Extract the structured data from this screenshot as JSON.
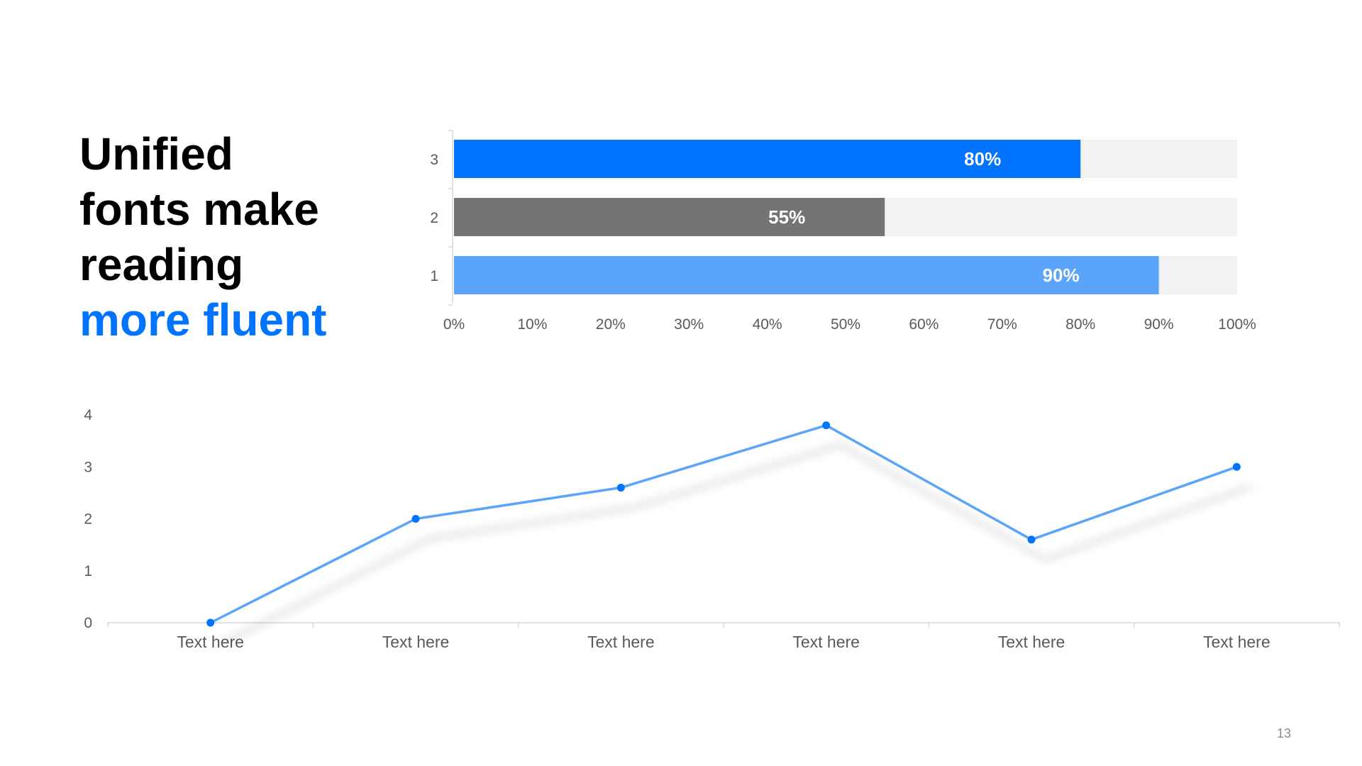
{
  "slide": {
    "title_lines": [
      "Unified",
      "fonts make",
      "reading"
    ],
    "title_accent": "more fluent",
    "page_number": "13"
  },
  "colors": {
    "accent": "#0073FF",
    "gray_bar": "#747474",
    "light_blue_bar": "#5BA4FC",
    "bar_track": "#F2F2F2",
    "line": "#5BA4FC",
    "marker": "#0073FF",
    "axis": "#D9D9D9",
    "tick_text": "#595959"
  },
  "chart_data": [
    {
      "type": "bar",
      "orientation": "horizontal",
      "categories": [
        "3",
        "2",
        "1"
      ],
      "values": [
        80,
        55,
        90
      ],
      "data_labels": [
        "80%",
        "55%",
        "90%"
      ],
      "bar_colors": [
        "#0073FF",
        "#747474",
        "#5BA4FC"
      ],
      "track_max": 100,
      "xlim": [
        0,
        100
      ],
      "x_ticks": [
        "0%",
        "10%",
        "20%",
        "30%",
        "40%",
        "50%",
        "60%",
        "70%",
        "80%",
        "90%",
        "100%"
      ],
      "grid": false,
      "legend": "none"
    },
    {
      "type": "line",
      "categories": [
        "Text here",
        "Text here",
        "Text here",
        "Text here",
        "Text here",
        "Text here"
      ],
      "series": [
        {
          "values": [
            0,
            2,
            2.6,
            3.8,
            1.6,
            3
          ]
        }
      ],
      "ylim": [
        0,
        4
      ],
      "y_ticks": [
        "0",
        "1",
        "2",
        "3",
        "4"
      ],
      "grid": false,
      "legend": "none"
    }
  ]
}
